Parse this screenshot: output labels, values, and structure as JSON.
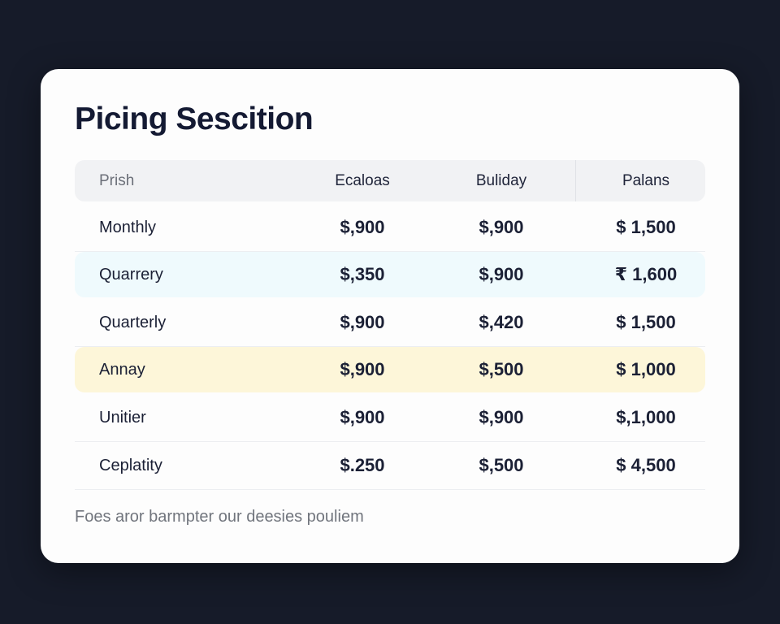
{
  "header": {
    "title": "Picing Sescition"
  },
  "table": {
    "columns": [
      "Prish",
      "Ecaloas",
      "Buliday",
      "Palans"
    ],
    "rows": [
      [
        "Monthly",
        "$,900",
        "$,900",
        "$ 1,500"
      ],
      [
        "Quarrery",
        "$,350",
        "$,900",
        "₹ 1,600"
      ],
      [
        "Quarterly",
        "$,900",
        "$,420",
        "$ 1,500"
      ],
      [
        "Annay",
        "$,900",
        "$,500",
        "$ 1,000"
      ],
      [
        "Unitier",
        "$,900",
        "$,900",
        "$,1,000"
      ],
      [
        "Ceplatity",
        "$.250",
        "$,500",
        "$ 4,500"
      ]
    ]
  },
  "footer": {
    "note": "Foes aror barmpter our deesies pouliem"
  }
}
